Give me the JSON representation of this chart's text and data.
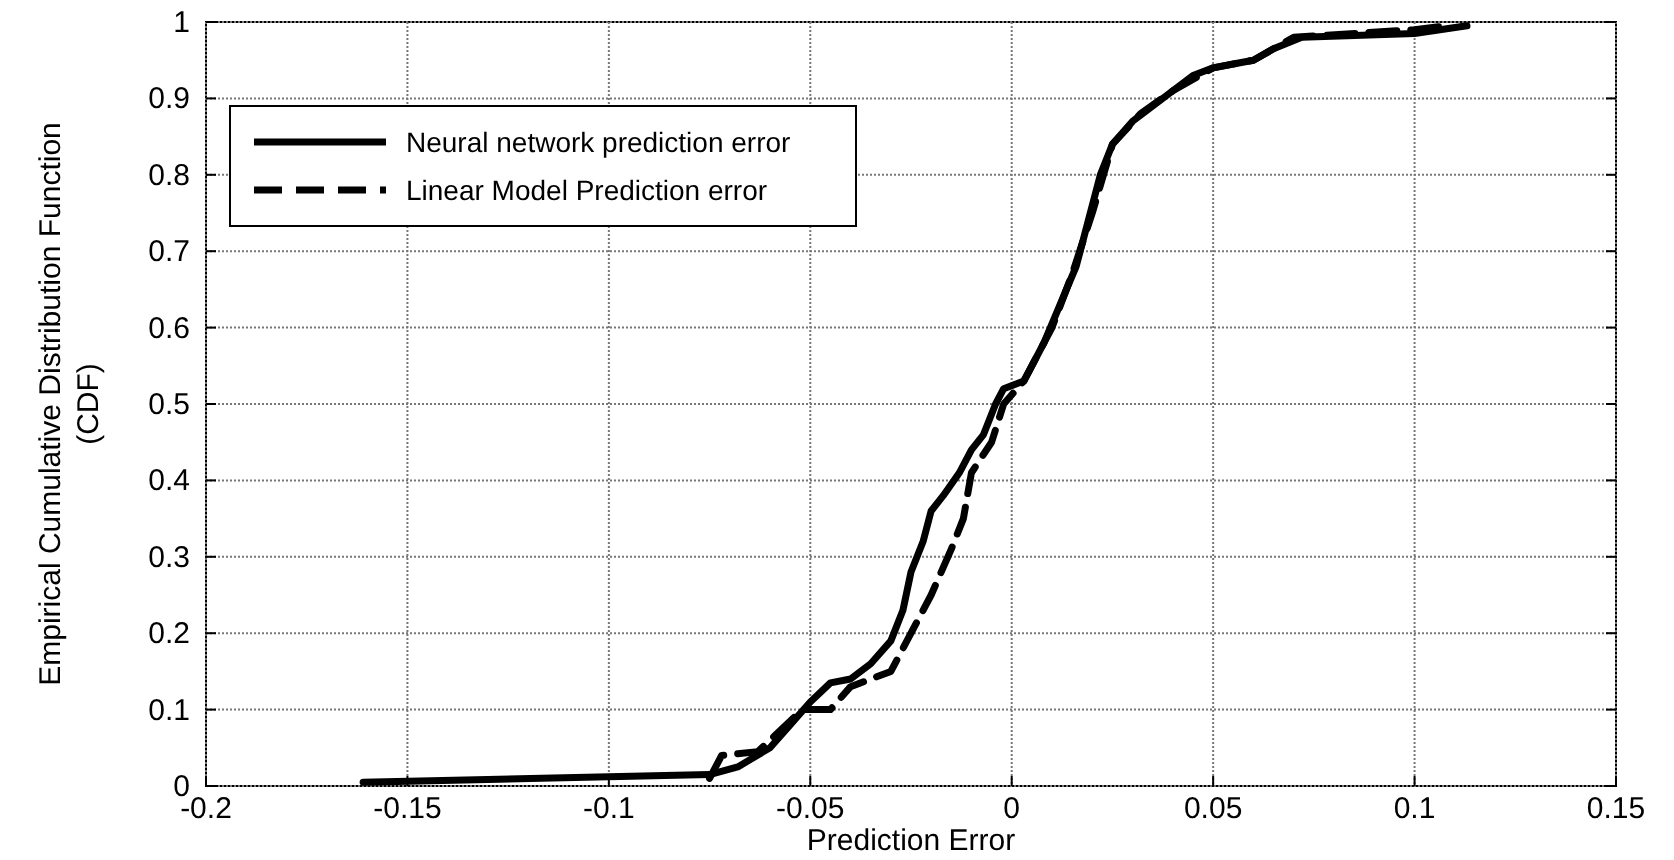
{
  "chart_data": {
    "type": "line",
    "xlabel": "Prediction Error",
    "ylabel": "Empirical Cumulative Distribution Function (CDF)",
    "xlim": [
      -0.2,
      0.15
    ],
    "xticks": [
      -0.2,
      -0.15,
      -0.1,
      -0.05,
      0,
      0.05,
      0.1,
      0.15
    ],
    "ylim": [
      0,
      1
    ],
    "yticks": [
      0,
      0.1,
      0.2,
      0.3,
      0.4,
      0.5,
      0.6,
      0.7,
      0.8,
      0.9,
      1
    ],
    "grid": true,
    "legend": "top left",
    "series": [
      {
        "name": "Neural network prediction error",
        "color": "#000000",
        "line_style": "solid",
        "x": [
          -0.161,
          -0.075,
          -0.068,
          -0.06,
          -0.055,
          -0.05,
          -0.045,
          -0.04,
          -0.035,
          -0.03,
          -0.027,
          -0.025,
          -0.022,
          -0.02,
          -0.017,
          -0.013,
          -0.01,
          -0.007,
          -0.004,
          -0.002,
          0.003,
          0.008,
          0.012,
          0.016,
          0.019,
          0.022,
          0.025,
          0.03,
          0.035,
          0.04,
          0.045,
          0.05,
          0.055,
          0.06,
          0.065,
          0.072,
          0.1,
          0.113
        ],
        "values": [
          0.005,
          0.015,
          0.025,
          0.05,
          0.08,
          0.11,
          0.135,
          0.14,
          0.16,
          0.19,
          0.23,
          0.28,
          0.32,
          0.36,
          0.38,
          0.41,
          0.44,
          0.46,
          0.5,
          0.52,
          0.53,
          0.58,
          0.63,
          0.68,
          0.74,
          0.8,
          0.84,
          0.87,
          0.89,
          0.91,
          0.93,
          0.94,
          0.945,
          0.95,
          0.965,
          0.98,
          0.985,
          0.995
        ]
      },
      {
        "name": "Linear Model Prediction error",
        "color": "#000000",
        "line_style": "dashed",
        "x": [
          -0.075,
          -0.072,
          -0.063,
          -0.058,
          -0.052,
          -0.045,
          -0.04,
          -0.03,
          -0.025,
          -0.02,
          -0.015,
          -0.012,
          -0.01,
          -0.005,
          -0.002,
          0.003,
          0.01,
          0.015,
          0.02,
          0.025,
          0.032,
          0.04,
          0.05,
          0.06,
          0.07,
          0.1,
          0.108
        ],
        "values": [
          0.01,
          0.04,
          0.045,
          0.07,
          0.1,
          0.1,
          0.13,
          0.15,
          0.2,
          0.25,
          0.31,
          0.35,
          0.41,
          0.45,
          0.5,
          0.53,
          0.6,
          0.67,
          0.75,
          0.84,
          0.88,
          0.91,
          0.94,
          0.95,
          0.98,
          0.99,
          0.995
        ]
      }
    ]
  }
}
